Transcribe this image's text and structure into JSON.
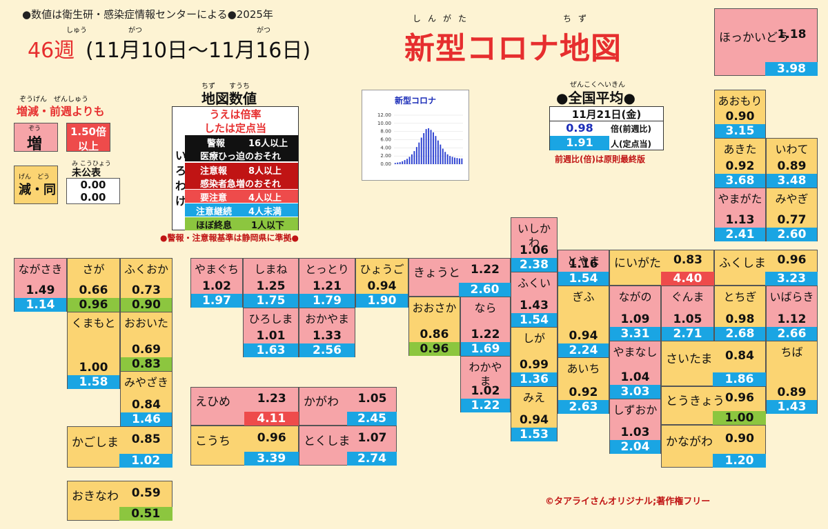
{
  "header": {
    "note": "●数値は衛生研・感染症情報センターによる●2025年",
    "week": "46週",
    "period": "(11月10日〜11月16日)",
    "ruby_shu": "しゅう",
    "ruby_gatsu1": "がつ",
    "ruby_gatsu2": "がつ",
    "title": "新型コロナ地図",
    "ruby_shingata": "しんがた",
    "ruby_chizu": "ちず"
  },
  "colors": {
    "increase": "#f6a4a8",
    "decrease": "#fbd472",
    "blue": "#1aa5e3",
    "green": "#8cc63f",
    "highlight": "#ee4b4b"
  },
  "legend_change": {
    "ruby": "ぞうげん　ぜんしゅう",
    "heading": "増減・前週よりも",
    "increase_ruby": "ぞう",
    "increase": "増",
    "big_increase_1": "1.50倍",
    "big_increase_2": "以上",
    "decrease_ruby": "げん　どう",
    "decrease": "減・同",
    "unpublished_ruby": "み こうひょう",
    "unpublished": "未公表",
    "unpub_v1": "0.00",
    "unpub_v2": "0.00"
  },
  "map_values": {
    "ruby": "ちず　　すうち",
    "title": "地図数値",
    "upper": "うえは倍率",
    "lower": "したは定点当",
    "side": "いろわけ",
    "rows": [
      {
        "label": "警報",
        "value": "16人以上"
      },
      {
        "label": "医療ひっ迫のおそれ",
        "value": ""
      },
      {
        "label": "注意報",
        "value": "8人以上"
      },
      {
        "label": "感染者急増のおそれ",
        "value": ""
      },
      {
        "label": "要注意",
        "value": "4人以上"
      },
      {
        "label": "注意継続",
        "value": "4人未満"
      },
      {
        "label": "ほぼ終息",
        "value": "1人以下"
      }
    ],
    "footnote": "●警報・注意報基準は静岡県に準拠●"
  },
  "chart_data": {
    "type": "bar",
    "title": "新型コロナ",
    "ylim": [
      0,
      12
    ],
    "yticks": [
      "0.00",
      "2.00",
      "4.00",
      "6.00",
      "8.00",
      "10.00",
      "12.00"
    ],
    "xlabel": "",
    "ylabel": "",
    "values": [
      0.3,
      0.4,
      0.5,
      0.7,
      1.0,
      1.3,
      1.8,
      2.4,
      3.2,
      4.2,
      5.3,
      6.5,
      7.6,
      8.6,
      8.8,
      8.4,
      7.8,
      6.9,
      5.8,
      4.8,
      3.8,
      3.0,
      2.4,
      2.0,
      1.8,
      1.6,
      1.5,
      1.4,
      1.4
    ]
  },
  "national": {
    "ruby": "ぜんこくへいきん",
    "title": "●全国平均●",
    "date": "11月21日(金)",
    "ratio": "0.98",
    "ratio_label": "倍(前週比)",
    "per": "1.91",
    "per_label": "人(定点当)",
    "note": "前週比(倍)は原則最終版"
  },
  "copyright": "©タアライさんオリジナル;著作権フリー",
  "prefectures": [
    {
      "id": "hokkaido",
      "name": "ほっかいどう",
      "r": "1.18",
      "v": "3.98"
    },
    {
      "id": "aomori",
      "name": "あおもり",
      "r": "0.90",
      "v": "3.15"
    },
    {
      "id": "akita",
      "name": "あきた",
      "r": "0.92",
      "v": "3.68"
    },
    {
      "id": "iwate",
      "name": "いわて",
      "r": "0.89",
      "v": "3.48"
    },
    {
      "id": "yamagata",
      "name": "やまがた",
      "r": "1.13",
      "v": "2.41"
    },
    {
      "id": "miyagi",
      "name": "みやぎ",
      "r": "0.77",
      "v": "2.60"
    },
    {
      "id": "fukushima",
      "name": "ふくしま",
      "r": "0.96",
      "v": "3.23"
    },
    {
      "id": "niigata",
      "name": "にいがた",
      "r": "0.83",
      "v": "4.40"
    },
    {
      "id": "toyama",
      "name": "とやま",
      "r": "1.16",
      "v": "1.54"
    },
    {
      "id": "ishikawa",
      "name": "いしかわ",
      "r": "1.06",
      "v": "2.38"
    },
    {
      "id": "fukui",
      "name": "ふくい",
      "r": "1.43",
      "v": "1.54"
    },
    {
      "id": "nagano",
      "name": "ながの",
      "r": "1.09",
      "v": "3.31"
    },
    {
      "id": "gunma",
      "name": "ぐんま",
      "r": "1.05",
      "v": "2.71"
    },
    {
      "id": "tochigi",
      "name": "とちぎ",
      "r": "0.98",
      "v": "2.68"
    },
    {
      "id": "ibaraki",
      "name": "いばらき",
      "r": "1.12",
      "v": "2.66"
    },
    {
      "id": "gifu",
      "name": "ぎふ",
      "r": "0.94",
      "v": "2.24"
    },
    {
      "id": "yamanashi",
      "name": "やまなし",
      "r": "1.04",
      "v": "3.03"
    },
    {
      "id": "saitama",
      "name": "さいたま",
      "r": "0.84",
      "v": "1.86"
    },
    {
      "id": "chiba",
      "name": "ちば",
      "r": "0.89",
      "v": "1.43"
    },
    {
      "id": "tokyo",
      "name": "とうきょう",
      "r": "0.96",
      "v": "1.00"
    },
    {
      "id": "kanagawa",
      "name": "かながわ",
      "r": "0.90",
      "v": "1.20"
    },
    {
      "id": "shizuoka",
      "name": "しずおか",
      "r": "1.03",
      "v": "2.04"
    },
    {
      "id": "aichi",
      "name": "あいち",
      "r": "0.92",
      "v": "2.63"
    },
    {
      "id": "shiga",
      "name": "しが",
      "r": "0.99",
      "v": "1.36"
    },
    {
      "id": "mie",
      "name": "みえ",
      "r": "0.94",
      "v": "1.53"
    },
    {
      "id": "kyoto",
      "name": "きょうと",
      "r": "1.22",
      "v": "2.60"
    },
    {
      "id": "osaka",
      "name": "おおさか",
      "r": "0.86",
      "v": "0.96"
    },
    {
      "id": "nara",
      "name": "なら",
      "r": "1.22",
      "v": "1.69"
    },
    {
      "id": "wakayama",
      "name": "わかやま",
      "r": "1.02",
      "v": "1.22"
    },
    {
      "id": "hyogo",
      "name": "ひょうご",
      "r": "0.94",
      "v": "1.90"
    },
    {
      "id": "tottori",
      "name": "とっとり",
      "r": "1.21",
      "v": "1.79"
    },
    {
      "id": "okayama",
      "name": "おかやま",
      "r": "1.33",
      "v": "2.56"
    },
    {
      "id": "shimane",
      "name": "しまね",
      "r": "1.25",
      "v": "1.75"
    },
    {
      "id": "hiroshima",
      "name": "ひろしま",
      "r": "1.01",
      "v": "1.63"
    },
    {
      "id": "yamaguchi",
      "name": "やまぐち",
      "r": "1.02",
      "v": "1.97"
    },
    {
      "id": "kagawa",
      "name": "かがわ",
      "r": "1.05",
      "v": "2.45"
    },
    {
      "id": "tokushima",
      "name": "とくしま",
      "r": "1.07",
      "v": "2.74"
    },
    {
      "id": "ehime",
      "name": "えひめ",
      "r": "1.23",
      "v": "4.11"
    },
    {
      "id": "kochi",
      "name": "こうち",
      "r": "0.96",
      "v": "3.39"
    },
    {
      "id": "fukuoka",
      "name": "ふくおか",
      "r": "0.73",
      "v": "0.90"
    },
    {
      "id": "saga",
      "name": "さが",
      "r": "0.66",
      "v": "0.96"
    },
    {
      "id": "nagasaki",
      "name": "ながさき",
      "r": "1.49",
      "v": "1.14"
    },
    {
      "id": "oita",
      "name": "おおいた",
      "r": "0.69",
      "v": "0.83"
    },
    {
      "id": "kumamoto",
      "name": "くまもと",
      "r": "1.00",
      "v": "1.58"
    },
    {
      "id": "miyazaki",
      "name": "みやざき",
      "r": "0.84",
      "v": "1.46"
    },
    {
      "id": "kagoshima",
      "name": "かごしま",
      "r": "0.85",
      "v": "1.02"
    },
    {
      "id": "okinawa",
      "name": "おきなわ",
      "r": "0.59",
      "v": "0.51"
    }
  ]
}
